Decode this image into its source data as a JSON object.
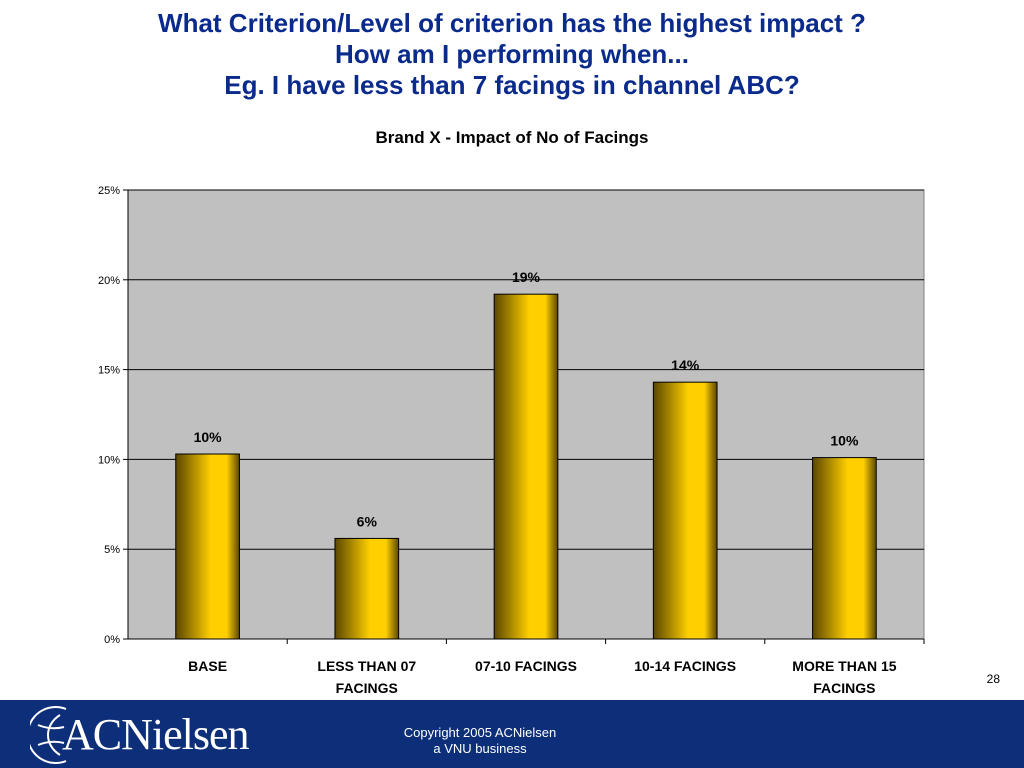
{
  "headline": {
    "line1": "What Criterion/Level of criterion has the highest impact ?",
    "line2": "How am I performing when...",
    "line3": "Eg. I have less than 7 facings in channel ABC?"
  },
  "page_number": "28",
  "footer": {
    "brand": "ACNielsen",
    "copyright_line1": "Copyright 2005 ACNielsen",
    "copyright_line2": "a VNU business",
    "background_color": "#0d2e78"
  },
  "chart_data": {
    "type": "bar",
    "title": "Brand X - Impact of No of Facings",
    "xlabel": "",
    "ylabel": "",
    "categories": [
      [
        "BASE"
      ],
      [
        "LESS THAN 07",
        "FACINGS"
      ],
      [
        "07-10 FACINGS"
      ],
      [
        "10-14 FACINGS"
      ],
      [
        "MORE THAN 15",
        "FACINGS"
      ]
    ],
    "values": [
      10.3,
      5.6,
      19.2,
      14.3,
      10.1
    ],
    "data_labels": [
      "10%",
      "6%",
      "19%",
      "14%",
      "10%"
    ],
    "ylim": [
      0,
      25
    ],
    "yticks": [
      0,
      5,
      10,
      15,
      20,
      25
    ],
    "ytick_labels": [
      "0%",
      "5%",
      "10%",
      "15%",
      "20%",
      "25%"
    ],
    "grid": true,
    "legend": "none",
    "colors": {
      "plot_background": "#c0c0c0",
      "bar_edge": "#9a7a00",
      "bar_center": "#ffcf00",
      "bar_dark": "#5a4600",
      "gridline": "#000000"
    }
  }
}
